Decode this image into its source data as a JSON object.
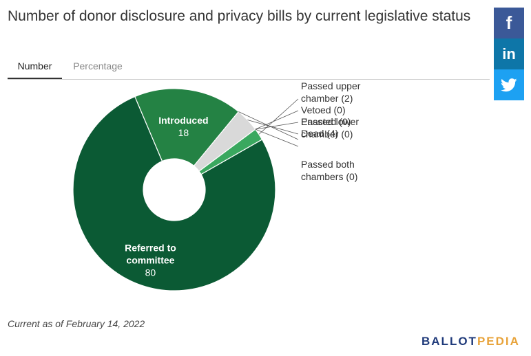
{
  "title": "Number of donor disclosure and privacy bills by current legislative status",
  "tabs": [
    {
      "label": "Number",
      "active": true
    },
    {
      "label": "Percentage",
      "active": false
    }
  ],
  "share": {
    "facebook": "f",
    "linkedin": "in",
    "twitter": "twitter-bird"
  },
  "footnote": "Current as of February 14, 2022",
  "logo": {
    "part1": "BALLOT",
    "part2": "PEDIA",
    "color1": "#1f3a7a",
    "color2": "#e8a33a"
  },
  "chart_data": {
    "type": "pie",
    "donut": true,
    "slices": [
      {
        "label": "Referred to committee",
        "value": 80,
        "color": "#0b5a34",
        "label_position": "inside"
      },
      {
        "label": "Introduced",
        "value": 18,
        "color": "#248244",
        "label_position": "inside"
      },
      {
        "label": "Passed lower chamber",
        "value": 0,
        "color": "#56a96a",
        "label_position": "outside",
        "outside_text": [
          "Passed lower",
          "chamber (0)"
        ]
      },
      {
        "label": "Dead",
        "value": 4,
        "color": "#d9d9d9",
        "label_position": "outside",
        "outside_text": [
          "Dead (4)"
        ]
      },
      {
        "label": "Passed both chambers",
        "value": 0,
        "color": "#8fbf8f",
        "label_position": "outside",
        "outside_text": [
          "Passed both",
          "chambers (0)"
        ]
      },
      {
        "label": "Enacted",
        "value": 0,
        "color": "#2e7d4f",
        "label_position": "outside",
        "outside_text": [
          "Enacted (0)"
        ]
      },
      {
        "label": "Vetoed",
        "value": 0,
        "color": "#999999",
        "label_position": "outside",
        "outside_text": [
          "Vetoed (0)"
        ]
      },
      {
        "label": "Passed upper chamber",
        "value": 2,
        "color": "#3aa85f",
        "label_position": "outside",
        "outside_text": [
          "Passed upper",
          "chamber (2)"
        ]
      }
    ]
  }
}
